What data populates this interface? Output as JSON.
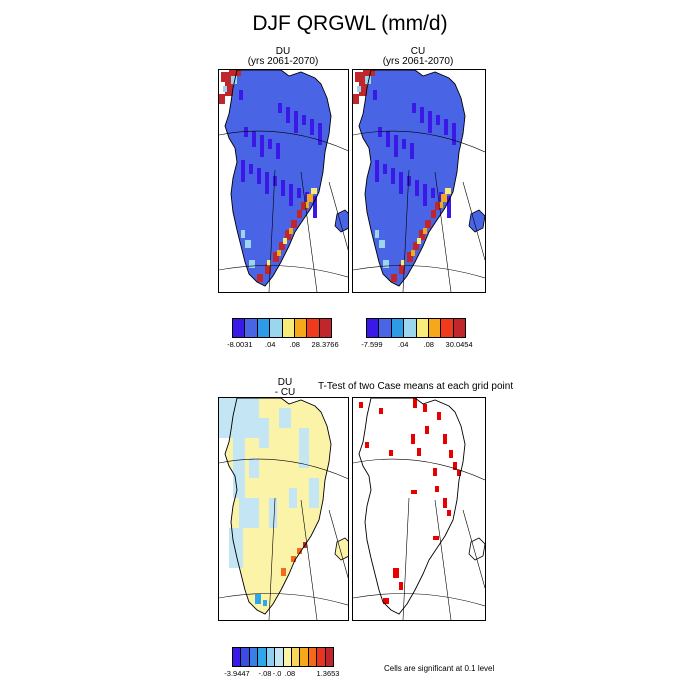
{
  "title": "DJF QRGWL (mm/d)",
  "panels": {
    "du": {
      "line1": "DU",
      "line2": "(yrs 2061-2070)"
    },
    "cu": {
      "line1": "CU",
      "line2": "(yrs 2061-2070)"
    },
    "diff": {
      "line1": "DU",
      "line2": "- CU"
    },
    "ttest": {
      "title": "T-Test of two Case means at each grid point"
    }
  },
  "colorbars": {
    "top_left": {
      "colors": [
        "#3a18e8",
        "#4a64e6",
        "#2e9be6",
        "#9cd6ee",
        "#f7eb7a",
        "#f5a81a",
        "#f03a1e",
        "#c2262d"
      ],
      "labels": [
        "-8.0031",
        ".04",
        ".08",
        "28.3766"
      ]
    },
    "top_right": {
      "colors": [
        "#3a18e8",
        "#4a64e6",
        "#2e9be6",
        "#9cd6ee",
        "#f7eb7a",
        "#f5a81a",
        "#f03a1e",
        "#c2262d"
      ],
      "labels": [
        "-7.599",
        ".04",
        ".08",
        "30.0454"
      ]
    },
    "bottom": {
      "colors": [
        "#3a18e8",
        "#3b4ce4",
        "#3a7fe6",
        "#2ea6ea",
        "#8fcff0",
        "#c4e6f4",
        "#fbf3a8",
        "#f8d55a",
        "#f5a81a",
        "#f26a1c",
        "#e93423",
        "#c2262d"
      ],
      "labels": [
        "-3.9447",
        "-.08",
        "-.0",
        ".08",
        "1.3653"
      ]
    }
  },
  "significance_note": "Cells are significant at 0.1 level",
  "colors": {
    "ice": "#4a64e6",
    "ice_dark": "#3a18e8",
    "diff_yellow": "#fbf3a8",
    "diff_blue": "#c4e6f4",
    "sig_red": "#e80000",
    "coast_red": "#e8301e"
  }
}
